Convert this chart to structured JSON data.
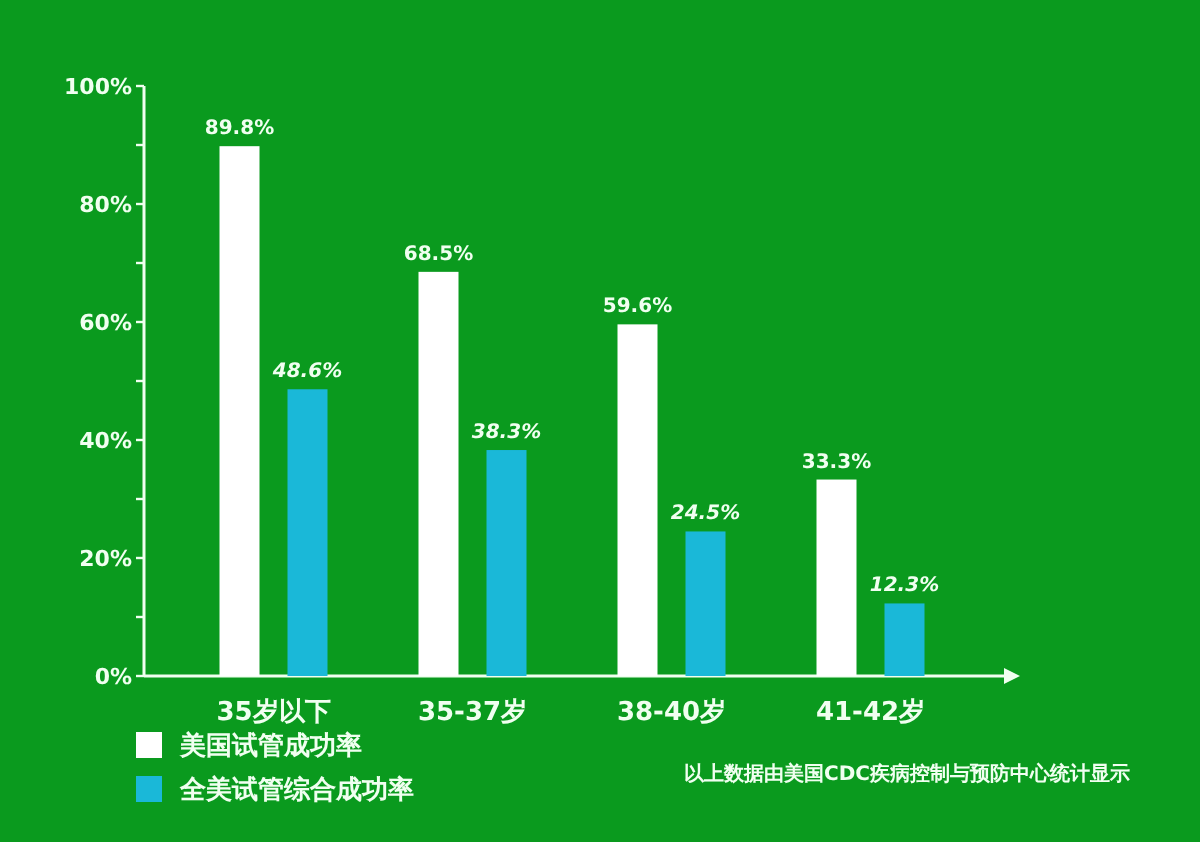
{
  "chart_data": {
    "type": "bar",
    "categories": [
      "35岁以下",
      "35-37岁",
      "38-40岁",
      "41-42岁"
    ],
    "series": [
      {
        "name": "美国试管成功率",
        "color": "#ffffff",
        "values": [
          89.8,
          68.5,
          59.6,
          33.3
        ],
        "value_labels": [
          "89.8%",
          "68.5%",
          "59.6%",
          "33.3%"
        ]
      },
      {
        "name": "全美试管综合成功率",
        "color": "#1ab8d8",
        "values": [
          48.6,
          38.3,
          24.5,
          12.3
        ],
        "value_labels": [
          "48.6%",
          "38.3%",
          "24.5%",
          "12.3%"
        ]
      }
    ],
    "ylim": [
      0,
      100
    ],
    "yticks": [
      {
        "value": 0,
        "label": "0%"
      },
      {
        "value": 10,
        "label": null
      },
      {
        "value": 20,
        "label": "20%"
      },
      {
        "value": 30,
        "label": null
      },
      {
        "value": 40,
        "label": "40%"
      },
      {
        "value": 50,
        "label": null
      },
      {
        "value": 60,
        "label": "60%"
      },
      {
        "value": 70,
        "label": null
      },
      {
        "value": 80,
        "label": "80%"
      },
      {
        "value": 90,
        "label": null
      },
      {
        "value": 100,
        "label": "100%"
      }
    ],
    "legend": "bottom left",
    "annotations": [
      "以上数据由美国CDC疾病控制与预防中心统计显示"
    ]
  }
}
